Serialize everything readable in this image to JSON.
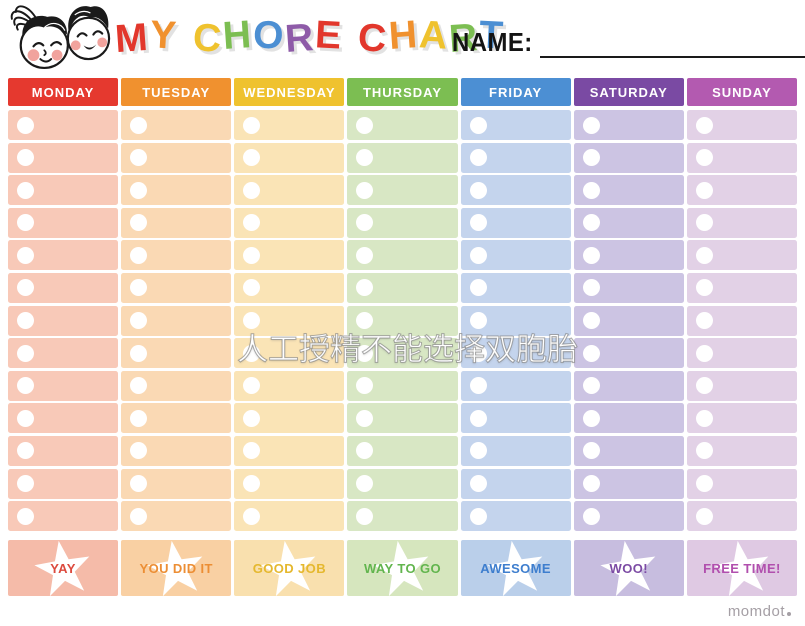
{
  "header": {
    "logo_icon": "two-kids-faces-logo",
    "title": "MY CHORE CHART",
    "title_letters": [
      {
        "ch": "M",
        "color": "#E2372C"
      },
      {
        "ch": "Y",
        "color": "#F0912E"
      },
      {
        "ch": " "
      },
      {
        "ch": "C",
        "color": "#EFC22E"
      },
      {
        "ch": "H",
        "color": "#7CBE52"
      },
      {
        "ch": "O",
        "color": "#4C8FD3"
      },
      {
        "ch": "R",
        "color": "#8E5BA8"
      },
      {
        "ch": "E",
        "color": "#E2372C"
      },
      {
        "ch": " "
      },
      {
        "ch": "C",
        "color": "#E2372C"
      },
      {
        "ch": "H",
        "color": "#F0912E"
      },
      {
        "ch": "A",
        "color": "#EFC22E"
      },
      {
        "ch": "R",
        "color": "#7CBE52"
      },
      {
        "ch": "T",
        "color": "#4C8FD3"
      }
    ],
    "name_label": "NAME:",
    "name_value": ""
  },
  "chart": {
    "rows_per_column": 13,
    "checkbox_color": "#ffffff",
    "star_icon_color": "#ffffff",
    "columns": [
      {
        "day": "MONDAY",
        "header_color": "#E5392F",
        "cell_color": "#F8C9B8",
        "footer_color": "#F5BBA9",
        "footer_label": "YAY",
        "footer_text_color": "#DC4A3E"
      },
      {
        "day": "TUESDAY",
        "header_color": "#F0912F",
        "cell_color": "#FAD9B4",
        "footer_color": "#F9D0A3",
        "footer_label": "YOU DID IT",
        "footer_text_color": "#EC8E34"
      },
      {
        "day": "WEDNESDAY",
        "header_color": "#EFC22F",
        "cell_color": "#FAE4B6",
        "footer_color": "#F9E0AE",
        "footer_label": "GOOD JOB",
        "footer_text_color": "#E5B82E"
      },
      {
        "day": "THURSDAY",
        "header_color": "#7CBE52",
        "cell_color": "#D8E7C4",
        "footer_color": "#D6E6BE",
        "footer_label": "WAY TO GO",
        "footer_text_color": "#62B54E"
      },
      {
        "day": "FRIDAY",
        "header_color": "#4C8FD3",
        "cell_color": "#C4D4ED",
        "footer_color": "#BACFEA",
        "footer_label": "AWESOME",
        "footer_text_color": "#3E7ECE"
      },
      {
        "day": "SATURDAY",
        "header_color": "#7A4AA3",
        "cell_color": "#CCC4E3",
        "footer_color": "#C7BDDF",
        "footer_label": "WOO!",
        "footer_text_color": "#7C4BA4"
      },
      {
        "day": "SUNDAY",
        "header_color": "#B35AB0",
        "cell_color": "#E2D1E6",
        "footer_color": "#DFC9E3",
        "footer_label": "FREE TIME!",
        "footer_text_color": "#B14FAE"
      }
    ]
  },
  "watermark": {
    "text": "人工授精不能选择双胞胎"
  },
  "brand": {
    "text": "momdot",
    "dot_icon": "small-dot"
  }
}
